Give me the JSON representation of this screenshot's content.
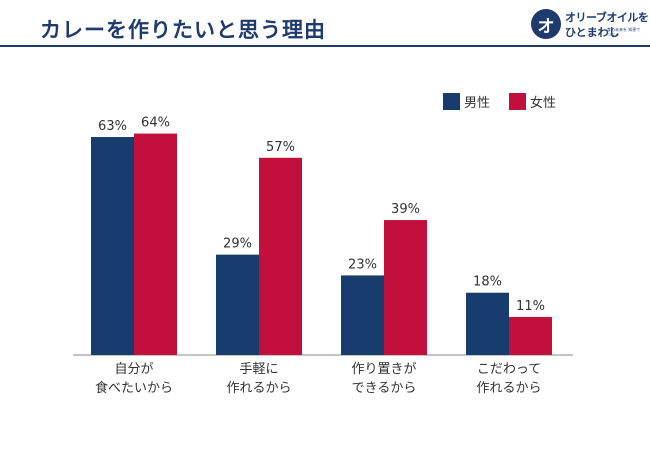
{
  "title": "カレーを作りたいと思う理由",
  "logo": {
    "mark": "オ",
    "line1": "オリーブオイルを",
    "line2": "ひとまわし",
    "sub": "食の未来を 知恵でつなぐ"
  },
  "colors": {
    "male": "#173d6f",
    "female": "#c20f3b",
    "accent": "#1e3a6e"
  },
  "chart_data": {
    "type": "bar",
    "title": "カレーを作りたいと思う理由",
    "categories": [
      [
        "自分が",
        "食べたいから"
      ],
      [
        "手軽に",
        "作れるから"
      ],
      [
        "作り置きが",
        "できるから"
      ],
      [
        "こだわって",
        "作れるから"
      ]
    ],
    "series": [
      {
        "name": "男性",
        "values": [
          63,
          29,
          23,
          18
        ],
        "labels": [
          "63%",
          "29%",
          "23%",
          "18%"
        ]
      },
      {
        "name": "女性",
        "values": [
          64,
          57,
          39,
          11
        ],
        "labels": [
          "64%",
          "57%",
          "39%",
          "11%"
        ]
      }
    ],
    "ylim": [
      0,
      70
    ],
    "legend": "top-right",
    "xlabel": "",
    "ylabel": ""
  }
}
